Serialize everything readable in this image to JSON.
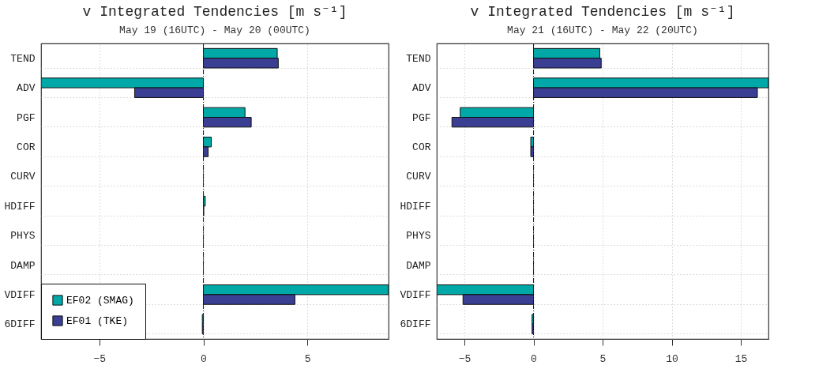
{
  "chart_data": [
    {
      "type": "bar",
      "orientation": "horizontal",
      "title": "v Integrated Tendencies [m s⁻¹]",
      "subtitle": "May 19 (16UTC) - May 20 (00UTC)",
      "categories": [
        "TEND",
        "ADV",
        "PGF",
        "COR",
        "CURV",
        "HDIFF",
        "PHYS",
        "DAMP",
        "VDIFF",
        "6DIFF"
      ],
      "series": [
        {
          "name": "EF02 (SMAG)",
          "color": "#00a8a8",
          "values": [
            3.55,
            -7.8,
            2.0,
            0.38,
            0.0,
            0.09,
            0.0,
            0.0,
            8.9,
            -0.05
          ]
        },
        {
          "name": "EF01 (TKE)",
          "color": "#3a3f94",
          "values": [
            3.6,
            -3.3,
            2.3,
            0.23,
            0.0,
            0.02,
            0.0,
            0.0,
            4.4,
            -0.05
          ]
        }
      ],
      "xlim": [
        -7.8,
        8.9
      ],
      "xticks": [
        -5,
        0,
        5
      ],
      "grid": true,
      "legend": "bottom left",
      "ref_lines": [
        {
          "axis": "x",
          "value": 0,
          "line_style": "dashed"
        }
      ]
    },
    {
      "type": "bar",
      "orientation": "horizontal",
      "title": "v Integrated Tendencies [m s⁻¹]",
      "subtitle": "May 21 (16UTC) - May 22 (20UTC)",
      "categories": [
        "TEND",
        "ADV",
        "PGF",
        "COR",
        "CURV",
        "HDIFF",
        "PHYS",
        "DAMP",
        "VDIFF",
        "6DIFF"
      ],
      "series": [
        {
          "name": "EF02 (SMAG)",
          "color": "#00a8a8",
          "values": [
            4.8,
            17,
            -5.3,
            -0.2,
            0.0,
            0.0,
            0.0,
            0.0,
            -7,
            -0.1
          ]
        },
        {
          "name": "EF01 (TKE)",
          "color": "#3a3f94",
          "values": [
            4.9,
            16.2,
            -5.9,
            -0.2,
            0.0,
            0.0,
            0.0,
            0.0,
            -5.1,
            -0.1
          ]
        }
      ],
      "xlim": [
        -7,
        17
      ],
      "xticks": [
        -5,
        0,
        5,
        10,
        15
      ],
      "grid": true,
      "ref_lines": [
        {
          "axis": "x",
          "value": 0,
          "line_style": "dashed"
        }
      ]
    }
  ]
}
